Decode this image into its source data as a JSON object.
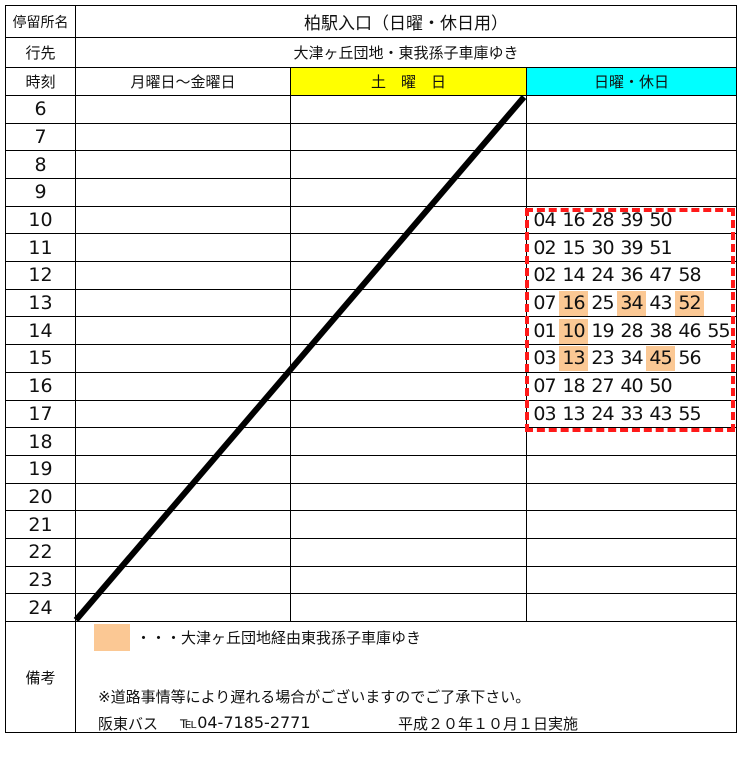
{
  "header": {
    "stop_label": "停留所名",
    "stop_name": "柏駅入口（日曜・休日用）",
    "dest_label": "行先",
    "destination": "大津ヶ丘団地・東我孫子車庫ゆき",
    "time_label": "時刻"
  },
  "columns": [
    {
      "label": "月曜日〜金曜日",
      "color": "#ffffff"
    },
    {
      "label": "土　曜　日",
      "color": "#ffff00"
    },
    {
      "label": "日曜・休日",
      "color": "#00ffff"
    }
  ],
  "highlight_color": "#fbc894",
  "rows": [
    {
      "hour": "6",
      "sunday": []
    },
    {
      "hour": "7",
      "sunday": []
    },
    {
      "hour": "8",
      "sunday": []
    },
    {
      "hour": "9",
      "sunday": []
    },
    {
      "hour": "10",
      "sunday": [
        {
          "m": "04"
        },
        {
          "m": "16"
        },
        {
          "m": "28"
        },
        {
          "m": "39"
        },
        {
          "m": "50"
        }
      ]
    },
    {
      "hour": "11",
      "sunday": [
        {
          "m": "02"
        },
        {
          "m": "15"
        },
        {
          "m": "30"
        },
        {
          "m": "39"
        },
        {
          "m": "51"
        }
      ]
    },
    {
      "hour": "12",
      "sunday": [
        {
          "m": "02"
        },
        {
          "m": "14"
        },
        {
          "m": "24"
        },
        {
          "m": "36"
        },
        {
          "m": "47"
        },
        {
          "m": "58"
        }
      ]
    },
    {
      "hour": "13",
      "sunday": [
        {
          "m": "07"
        },
        {
          "m": "16",
          "via": true
        },
        {
          "m": "25"
        },
        {
          "m": "34",
          "via": true
        },
        {
          "m": "43"
        },
        {
          "m": "52",
          "via": true
        }
      ]
    },
    {
      "hour": "14",
      "sunday": [
        {
          "m": "01"
        },
        {
          "m": "10",
          "via": true
        },
        {
          "m": "19"
        },
        {
          "m": "28"
        },
        {
          "m": "38"
        },
        {
          "m": "46"
        },
        {
          "m": "55"
        }
      ]
    },
    {
      "hour": "15",
      "sunday": [
        {
          "m": "03"
        },
        {
          "m": "13",
          "via": true
        },
        {
          "m": "23"
        },
        {
          "m": "34"
        },
        {
          "m": "45",
          "via": true
        },
        {
          "m": "56"
        }
      ]
    },
    {
      "hour": "16",
      "sunday": [
        {
          "m": "07"
        },
        {
          "m": "18"
        },
        {
          "m": "27"
        },
        {
          "m": "40"
        },
        {
          "m": "50"
        }
      ]
    },
    {
      "hour": "17",
      "sunday": [
        {
          "m": "03"
        },
        {
          "m": "13"
        },
        {
          "m": "24"
        },
        {
          "m": "33"
        },
        {
          "m": "43"
        },
        {
          "m": "55"
        }
      ]
    },
    {
      "hour": "18",
      "sunday": []
    },
    {
      "hour": "19",
      "sunday": []
    },
    {
      "hour": "20",
      "sunday": []
    },
    {
      "hour": "21",
      "sunday": []
    },
    {
      "hour": "22",
      "sunday": []
    },
    {
      "hour": "23",
      "sunday": []
    },
    {
      "hour": "24",
      "sunday": []
    }
  ],
  "remarks": {
    "label": "備考",
    "legend": "・・・大津ヶ丘団地経由東我孫子車庫ゆき",
    "notice": "※道路事情等により遅れる場合がございますのでご了承下さい。",
    "company": "阪東バス",
    "tel": "℡04-7185-2771",
    "effective": "平成２０年１０月１日実施"
  }
}
